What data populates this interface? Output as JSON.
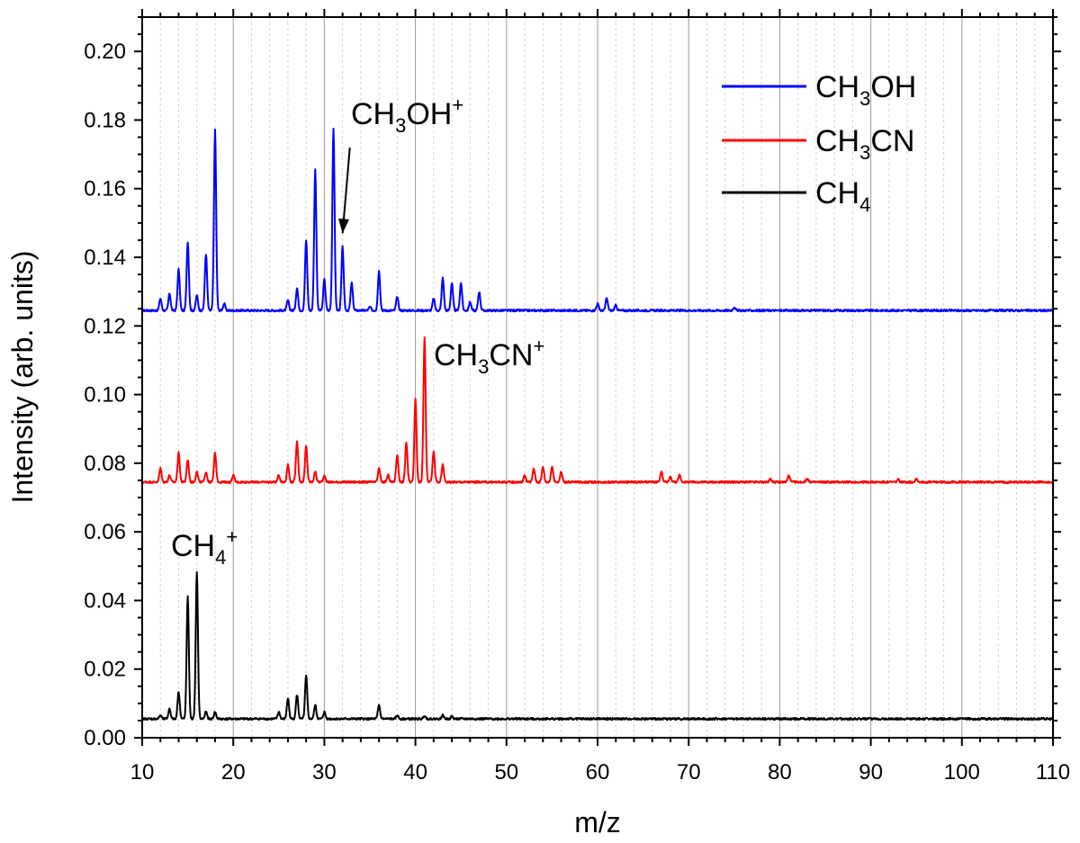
{
  "chart_data": {
    "type": "line",
    "title": "",
    "xlabel": "m/z",
    "ylabel": "Intensity (arb. units)",
    "xlim": [
      10,
      110
    ],
    "ylim": [
      0.0,
      0.21
    ],
    "x_ticks": [
      10,
      20,
      30,
      40,
      50,
      60,
      70,
      80,
      90,
      100,
      110
    ],
    "x_tick_labels": [
      "10",
      "20",
      "30",
      "40",
      "50",
      "60",
      "70",
      "80",
      "90",
      "100",
      "110"
    ],
    "y_ticks": [
      0.0,
      0.02,
      0.04,
      0.06,
      0.08,
      0.1,
      0.12,
      0.14,
      0.16,
      0.18,
      0.2
    ],
    "y_tick_labels": [
      "0.00",
      "0.02",
      "0.04",
      "0.06",
      "0.08",
      "0.10",
      "0.12",
      "0.14",
      "0.16",
      "0.18",
      "0.20"
    ],
    "grid": {
      "x_major": true,
      "x_minor": true,
      "y": false
    },
    "legend_position": "top-right",
    "series": [
      {
        "name": "CH3OH",
        "legend": {
          "main": "CH",
          "sub": "3",
          "rest": "OH"
        },
        "color": "#0000ff",
        "baseline": 0.1245,
        "peaks": [
          [
            12,
            0.128
          ],
          [
            13,
            0.1295
          ],
          [
            14,
            0.1365
          ],
          [
            15,
            0.1445
          ],
          [
            16,
            0.129
          ],
          [
            17,
            0.141
          ],
          [
            18,
            0.177
          ],
          [
            19,
            0.1265
          ],
          [
            26,
            0.1275
          ],
          [
            27,
            0.131
          ],
          [
            28,
            0.145
          ],
          [
            29,
            0.1655
          ],
          [
            30,
            0.1335
          ],
          [
            31,
            0.1775
          ],
          [
            32,
            0.143
          ],
          [
            33,
            0.1325
          ],
          [
            35,
            0.1255
          ],
          [
            36,
            0.136
          ],
          [
            38,
            0.1285
          ],
          [
            42,
            0.128
          ],
          [
            43,
            0.134
          ],
          [
            44,
            0.1325
          ],
          [
            45,
            0.1325
          ],
          [
            46,
            0.127
          ],
          [
            47,
            0.13
          ],
          [
            60,
            0.1265
          ],
          [
            61,
            0.128
          ],
          [
            62,
            0.126
          ],
          [
            75,
            0.1255
          ]
        ]
      },
      {
        "name": "CH3CN",
        "legend": {
          "main": "CH",
          "sub": "3",
          "rest": "CN"
        },
        "color": "#ff0000",
        "baseline": 0.0745,
        "peaks": [
          [
            12,
            0.0785
          ],
          [
            13,
            0.0765
          ],
          [
            14,
            0.083
          ],
          [
            15,
            0.081
          ],
          [
            16,
            0.0775
          ],
          [
            17,
            0.0775
          ],
          [
            18,
            0.083
          ],
          [
            20,
            0.0765
          ],
          [
            25,
            0.0765
          ],
          [
            26,
            0.0795
          ],
          [
            27,
            0.0865
          ],
          [
            28,
            0.085
          ],
          [
            29,
            0.0775
          ],
          [
            30,
            0.0765
          ],
          [
            36,
            0.0785
          ],
          [
            37,
            0.0765
          ],
          [
            38,
            0.0825
          ],
          [
            39,
            0.086
          ],
          [
            40,
            0.0985
          ],
          [
            41,
            0.1165
          ],
          [
            42,
            0.0835
          ],
          [
            43,
            0.0795
          ],
          [
            52,
            0.0765
          ],
          [
            53,
            0.0785
          ],
          [
            54,
            0.079
          ],
          [
            55,
            0.079
          ],
          [
            56,
            0.0775
          ],
          [
            67,
            0.0775
          ],
          [
            68,
            0.076
          ],
          [
            69,
            0.0765
          ],
          [
            79,
            0.0755
          ],
          [
            81,
            0.0765
          ],
          [
            83,
            0.0755
          ],
          [
            93,
            0.0752
          ],
          [
            95,
            0.0755
          ]
        ]
      },
      {
        "name": "CH4",
        "legend": {
          "main": "CH",
          "sub": "4",
          "rest": ""
        },
        "color": "#000000",
        "baseline": 0.0055,
        "peaks": [
          [
            12,
            0.0065
          ],
          [
            13,
            0.0085
          ],
          [
            14,
            0.0135
          ],
          [
            15,
            0.041
          ],
          [
            16,
            0.048
          ],
          [
            17,
            0.0075
          ],
          [
            18,
            0.0075
          ],
          [
            25,
            0.0075
          ],
          [
            26,
            0.0115
          ],
          [
            27,
            0.0125
          ],
          [
            28,
            0.018
          ],
          [
            29,
            0.0095
          ],
          [
            30,
            0.0075
          ],
          [
            36,
            0.0095
          ],
          [
            38,
            0.0065
          ],
          [
            41,
            0.0065
          ],
          [
            43,
            0.0065
          ],
          [
            44,
            0.0062
          ]
        ]
      }
    ],
    "annotations": [
      {
        "main": "CH",
        "sub": "3",
        "rest": "OH",
        "sup": "+"
      },
      {
        "main": "CH",
        "sub": "3",
        "rest": "CN",
        "sup": "+"
      },
      {
        "main": "CH",
        "sub": "4",
        "rest": "",
        "sup": "+"
      }
    ],
    "arrow": {
      "from": [
        32.8,
        0.172
      ],
      "to": [
        32.0,
        0.147
      ]
    }
  }
}
